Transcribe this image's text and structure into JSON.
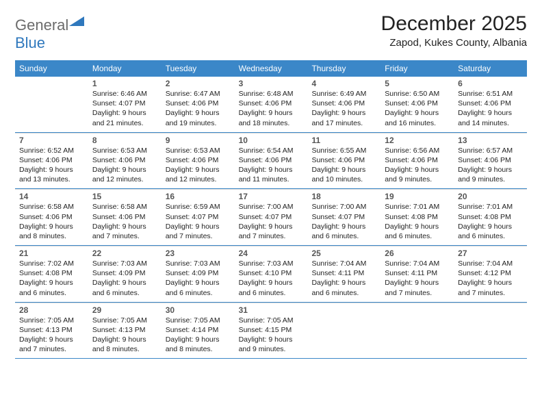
{
  "logo": {
    "text_general": "General",
    "text_blue": "Blue",
    "triangle_color": "#2f78bd"
  },
  "title": "December 2025",
  "location": "Zapod, Kukes County, Albania",
  "header_bg": "#3b87c8",
  "header_fg": "#ffffff",
  "rule_color": "#3b87c8",
  "cell_border_color": "#d9d9d9",
  "day_names": [
    "Sunday",
    "Monday",
    "Tuesday",
    "Wednesday",
    "Thursday",
    "Friday",
    "Saturday"
  ],
  "weeks": [
    [
      null,
      {
        "n": "1",
        "sunrise": "Sunrise: 6:46 AM",
        "sunset": "Sunset: 4:07 PM",
        "day1": "Daylight: 9 hours",
        "day2": "and 21 minutes."
      },
      {
        "n": "2",
        "sunrise": "Sunrise: 6:47 AM",
        "sunset": "Sunset: 4:06 PM",
        "day1": "Daylight: 9 hours",
        "day2": "and 19 minutes."
      },
      {
        "n": "3",
        "sunrise": "Sunrise: 6:48 AM",
        "sunset": "Sunset: 4:06 PM",
        "day1": "Daylight: 9 hours",
        "day2": "and 18 minutes."
      },
      {
        "n": "4",
        "sunrise": "Sunrise: 6:49 AM",
        "sunset": "Sunset: 4:06 PM",
        "day1": "Daylight: 9 hours",
        "day2": "and 17 minutes."
      },
      {
        "n": "5",
        "sunrise": "Sunrise: 6:50 AM",
        "sunset": "Sunset: 4:06 PM",
        "day1": "Daylight: 9 hours",
        "day2": "and 16 minutes."
      },
      {
        "n": "6",
        "sunrise": "Sunrise: 6:51 AM",
        "sunset": "Sunset: 4:06 PM",
        "day1": "Daylight: 9 hours",
        "day2": "and 14 minutes."
      }
    ],
    [
      {
        "n": "7",
        "sunrise": "Sunrise: 6:52 AM",
        "sunset": "Sunset: 4:06 PM",
        "day1": "Daylight: 9 hours",
        "day2": "and 13 minutes."
      },
      {
        "n": "8",
        "sunrise": "Sunrise: 6:53 AM",
        "sunset": "Sunset: 4:06 PM",
        "day1": "Daylight: 9 hours",
        "day2": "and 12 minutes."
      },
      {
        "n": "9",
        "sunrise": "Sunrise: 6:53 AM",
        "sunset": "Sunset: 4:06 PM",
        "day1": "Daylight: 9 hours",
        "day2": "and 12 minutes."
      },
      {
        "n": "10",
        "sunrise": "Sunrise: 6:54 AM",
        "sunset": "Sunset: 4:06 PM",
        "day1": "Daylight: 9 hours",
        "day2": "and 11 minutes."
      },
      {
        "n": "11",
        "sunrise": "Sunrise: 6:55 AM",
        "sunset": "Sunset: 4:06 PM",
        "day1": "Daylight: 9 hours",
        "day2": "and 10 minutes."
      },
      {
        "n": "12",
        "sunrise": "Sunrise: 6:56 AM",
        "sunset": "Sunset: 4:06 PM",
        "day1": "Daylight: 9 hours",
        "day2": "and 9 minutes."
      },
      {
        "n": "13",
        "sunrise": "Sunrise: 6:57 AM",
        "sunset": "Sunset: 4:06 PM",
        "day1": "Daylight: 9 hours",
        "day2": "and 9 minutes."
      }
    ],
    [
      {
        "n": "14",
        "sunrise": "Sunrise: 6:58 AM",
        "sunset": "Sunset: 4:06 PM",
        "day1": "Daylight: 9 hours",
        "day2": "and 8 minutes."
      },
      {
        "n": "15",
        "sunrise": "Sunrise: 6:58 AM",
        "sunset": "Sunset: 4:06 PM",
        "day1": "Daylight: 9 hours",
        "day2": "and 7 minutes."
      },
      {
        "n": "16",
        "sunrise": "Sunrise: 6:59 AM",
        "sunset": "Sunset: 4:07 PM",
        "day1": "Daylight: 9 hours",
        "day2": "and 7 minutes."
      },
      {
        "n": "17",
        "sunrise": "Sunrise: 7:00 AM",
        "sunset": "Sunset: 4:07 PM",
        "day1": "Daylight: 9 hours",
        "day2": "and 7 minutes."
      },
      {
        "n": "18",
        "sunrise": "Sunrise: 7:00 AM",
        "sunset": "Sunset: 4:07 PM",
        "day1": "Daylight: 9 hours",
        "day2": "and 6 minutes."
      },
      {
        "n": "19",
        "sunrise": "Sunrise: 7:01 AM",
        "sunset": "Sunset: 4:08 PM",
        "day1": "Daylight: 9 hours",
        "day2": "and 6 minutes."
      },
      {
        "n": "20",
        "sunrise": "Sunrise: 7:01 AM",
        "sunset": "Sunset: 4:08 PM",
        "day1": "Daylight: 9 hours",
        "day2": "and 6 minutes."
      }
    ],
    [
      {
        "n": "21",
        "sunrise": "Sunrise: 7:02 AM",
        "sunset": "Sunset: 4:08 PM",
        "day1": "Daylight: 9 hours",
        "day2": "and 6 minutes."
      },
      {
        "n": "22",
        "sunrise": "Sunrise: 7:03 AM",
        "sunset": "Sunset: 4:09 PM",
        "day1": "Daylight: 9 hours",
        "day2": "and 6 minutes."
      },
      {
        "n": "23",
        "sunrise": "Sunrise: 7:03 AM",
        "sunset": "Sunset: 4:09 PM",
        "day1": "Daylight: 9 hours",
        "day2": "and 6 minutes."
      },
      {
        "n": "24",
        "sunrise": "Sunrise: 7:03 AM",
        "sunset": "Sunset: 4:10 PM",
        "day1": "Daylight: 9 hours",
        "day2": "and 6 minutes."
      },
      {
        "n": "25",
        "sunrise": "Sunrise: 7:04 AM",
        "sunset": "Sunset: 4:11 PM",
        "day1": "Daylight: 9 hours",
        "day2": "and 6 minutes."
      },
      {
        "n": "26",
        "sunrise": "Sunrise: 7:04 AM",
        "sunset": "Sunset: 4:11 PM",
        "day1": "Daylight: 9 hours",
        "day2": "and 7 minutes."
      },
      {
        "n": "27",
        "sunrise": "Sunrise: 7:04 AM",
        "sunset": "Sunset: 4:12 PM",
        "day1": "Daylight: 9 hours",
        "day2": "and 7 minutes."
      }
    ],
    [
      {
        "n": "28",
        "sunrise": "Sunrise: 7:05 AM",
        "sunset": "Sunset: 4:13 PM",
        "day1": "Daylight: 9 hours",
        "day2": "and 7 minutes."
      },
      {
        "n": "29",
        "sunrise": "Sunrise: 7:05 AM",
        "sunset": "Sunset: 4:13 PM",
        "day1": "Daylight: 9 hours",
        "day2": "and 8 minutes."
      },
      {
        "n": "30",
        "sunrise": "Sunrise: 7:05 AM",
        "sunset": "Sunset: 4:14 PM",
        "day1": "Daylight: 9 hours",
        "day2": "and 8 minutes."
      },
      {
        "n": "31",
        "sunrise": "Sunrise: 7:05 AM",
        "sunset": "Sunset: 4:15 PM",
        "day1": "Daylight: 9 hours",
        "day2": "and 9 minutes."
      },
      null,
      null,
      null
    ]
  ]
}
